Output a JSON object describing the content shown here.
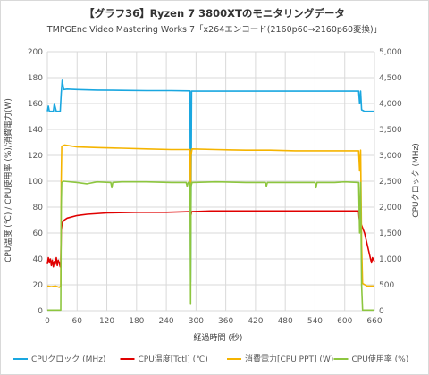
{
  "title": "【グラフ36】Ryzen 7 3800XTのモニタリングデータ",
  "subtitle": "TMPGEnc Video Mastering Works 7「x264エンコード(2160p60→2160p60変換)」",
  "chart_data": {
    "type": "line",
    "xlabel": "経過時間 (秒)",
    "ylabel_left": "CPU温度 (℃) / CPU使用率 (%)/消費電力(W)",
    "ylabel_right": "CPUクロック (MHz)",
    "xlim": [
      0,
      660
    ],
    "ylim_left": [
      0,
      200
    ],
    "ylim_right": [
      0,
      5000
    ],
    "x_ticks": [
      "0",
      "60",
      "120",
      "180",
      "240",
      "300",
      "360",
      "420",
      "480",
      "540",
      "600",
      "660"
    ],
    "y_ticks_left": [
      "0",
      "20",
      "40",
      "60",
      "80",
      "100",
      "120",
      "140",
      "160",
      "180",
      "200"
    ],
    "y_ticks_right": [
      "0",
      "500",
      "1,000",
      "1,500",
      "2,000",
      "2,500",
      "3,000",
      "3,500",
      "4,000",
      "4,500",
      "5,000"
    ],
    "grid": true,
    "legend_position": "bottom",
    "series": [
      {
        "name": "CPUクロック (MHz)",
        "axis": "right",
        "color": "#1aa7e0",
        "points": [
          [
            0,
            3850
          ],
          [
            2,
            3950
          ],
          [
            4,
            3850
          ],
          [
            8,
            3850
          ],
          [
            12,
            3850
          ],
          [
            14,
            4000
          ],
          [
            18,
            3850
          ],
          [
            22,
            3850
          ],
          [
            26,
            3850
          ],
          [
            28,
            4200
          ],
          [
            30,
            4450
          ],
          [
            33,
            4270
          ],
          [
            40,
            4280
          ],
          [
            60,
            4270
          ],
          [
            100,
            4260
          ],
          [
            150,
            4255
          ],
          [
            200,
            4250
          ],
          [
            250,
            4250
          ],
          [
            288,
            4245
          ],
          [
            289,
            550
          ],
          [
            291,
            4240
          ],
          [
            330,
            4240
          ],
          [
            400,
            4240
          ],
          [
            450,
            4240
          ],
          [
            500,
            4240
          ],
          [
            550,
            4240
          ],
          [
            600,
            4240
          ],
          [
            628,
            4240
          ],
          [
            630,
            4000
          ],
          [
            632,
            4240
          ],
          [
            634,
            3880
          ],
          [
            640,
            3850
          ],
          [
            650,
            3850
          ],
          [
            660,
            3850
          ]
        ]
      },
      {
        "name": "CPU温度[Tctl] (℃)",
        "axis": "left",
        "color": "#e00000",
        "points": [
          [
            0,
            36
          ],
          [
            2,
            41
          ],
          [
            4,
            37
          ],
          [
            6,
            40
          ],
          [
            8,
            35
          ],
          [
            10,
            39
          ],
          [
            12,
            34
          ],
          [
            14,
            38
          ],
          [
            16,
            36
          ],
          [
            18,
            41
          ],
          [
            20,
            35
          ],
          [
            22,
            39
          ],
          [
            24,
            37
          ],
          [
            26,
            34
          ],
          [
            27,
            35
          ],
          [
            28,
            62
          ],
          [
            30,
            68
          ],
          [
            34,
            70
          ],
          [
            40,
            71.5
          ],
          [
            60,
            73.5
          ],
          [
            80,
            74.5
          ],
          [
            120,
            75.5
          ],
          [
            180,
            76
          ],
          [
            240,
            76
          ],
          [
            288,
            76.5
          ],
          [
            289,
            72
          ],
          [
            291,
            76.5
          ],
          [
            330,
            77
          ],
          [
            400,
            77
          ],
          [
            450,
            77
          ],
          [
            500,
            77
          ],
          [
            550,
            77
          ],
          [
            600,
            77
          ],
          [
            628,
            77
          ],
          [
            629,
            72
          ],
          [
            630,
            70
          ],
          [
            640,
            60
          ],
          [
            652,
            40
          ],
          [
            654,
            37
          ],
          [
            656,
            41
          ],
          [
            660,
            38
          ]
        ]
      },
      {
        "name": "消費電力[CPU PPT] (W)",
        "axis": "left",
        "color": "#f5b400",
        "points": [
          [
            0,
            19
          ],
          [
            8,
            18.5
          ],
          [
            16,
            19
          ],
          [
            24,
            18
          ],
          [
            27,
            19
          ],
          [
            28,
            100
          ],
          [
            29,
            127
          ],
          [
            35,
            128
          ],
          [
            60,
            126.5
          ],
          [
            100,
            126
          ],
          [
            150,
            125.5
          ],
          [
            200,
            125
          ],
          [
            250,
            124.5
          ],
          [
            288,
            124.5
          ],
          [
            289,
            60
          ],
          [
            290,
            120
          ],
          [
            292,
            125
          ],
          [
            340,
            124.5
          ],
          [
            400,
            124
          ],
          [
            450,
            124
          ],
          [
            500,
            123.5
          ],
          [
            550,
            123.5
          ],
          [
            600,
            123.5
          ],
          [
            628,
            123.5
          ],
          [
            630,
            108
          ],
          [
            632,
            124
          ],
          [
            634,
            52
          ],
          [
            636,
            21
          ],
          [
            645,
            19
          ],
          [
            660,
            19
          ]
        ]
      },
      {
        "name": "CPU使用率 (%)",
        "axis": "left",
        "color": "#8dc63f",
        "points": [
          [
            0,
            0.5
          ],
          [
            10,
            0.5
          ],
          [
            20,
            0.5
          ],
          [
            27,
            0.5
          ],
          [
            28,
            80
          ],
          [
            29,
            99
          ],
          [
            33,
            100
          ],
          [
            60,
            99
          ],
          [
            80,
            98
          ],
          [
            100,
            99.5
          ],
          [
            128,
            99
          ],
          [
            130,
            95
          ],
          [
            132,
            99
          ],
          [
            150,
            99.5
          ],
          [
            200,
            99.5
          ],
          [
            250,
            99
          ],
          [
            280,
            99
          ],
          [
            282,
            96
          ],
          [
            284,
            99
          ],
          [
            288,
            99
          ],
          [
            289,
            5
          ],
          [
            290,
            96
          ],
          [
            292,
            99
          ],
          [
            340,
            99.5
          ],
          [
            400,
            99
          ],
          [
            440,
            99
          ],
          [
            442,
            96
          ],
          [
            444,
            99
          ],
          [
            500,
            99
          ],
          [
            540,
            99
          ],
          [
            542,
            95
          ],
          [
            544,
            99
          ],
          [
            580,
            99
          ],
          [
            600,
            99.5
          ],
          [
            628,
            99
          ],
          [
            630,
            60
          ],
          [
            632,
            99
          ],
          [
            634,
            20
          ],
          [
            636,
            0.5
          ],
          [
            660,
            0.5
          ]
        ]
      }
    ]
  }
}
